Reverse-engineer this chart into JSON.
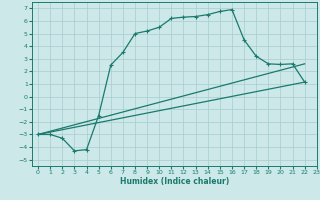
{
  "xlabel": "Humidex (Indice chaleur)",
  "bg_color": "#cce8e8",
  "line_color": "#1a7a6e",
  "grid_color": "#a8cccc",
  "xlim": [
    -0.5,
    23
  ],
  "ylim": [
    -5.5,
    7.5
  ],
  "xticks": [
    0,
    1,
    2,
    3,
    4,
    5,
    6,
    7,
    8,
    9,
    10,
    11,
    12,
    13,
    14,
    15,
    16,
    17,
    18,
    19,
    20,
    21,
    22,
    23
  ],
  "yticks": [
    -5,
    -4,
    -3,
    -2,
    -1,
    0,
    1,
    2,
    3,
    4,
    5,
    6,
    7
  ],
  "line1_x": [
    0,
    1,
    2,
    3,
    4,
    5,
    6,
    7,
    8,
    9,
    10,
    11,
    12,
    13,
    14,
    15,
    16,
    17,
    18,
    19,
    20,
    21,
    22
  ],
  "line1_y": [
    -3.0,
    -3.0,
    -3.3,
    -4.3,
    -4.2,
    -1.5,
    2.5,
    3.5,
    5.0,
    5.2,
    5.5,
    6.2,
    6.3,
    6.35,
    6.5,
    6.75,
    6.9,
    4.5,
    3.2,
    2.6,
    2.55,
    2.6,
    1.15
  ],
  "line2_x": [
    0,
    22
  ],
  "line2_y": [
    -3.0,
    2.6
  ],
  "line3_x": [
    0,
    22
  ],
  "line3_y": [
    -3.0,
    1.15
  ]
}
